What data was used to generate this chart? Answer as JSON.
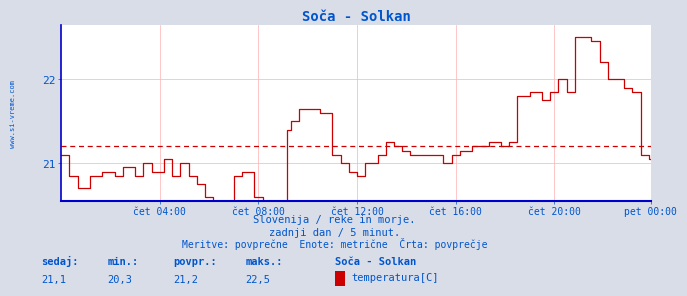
{
  "title": "Soča - Solkan",
  "bg_color": "#d8dde8",
  "plot_bg_color": "#ffffff",
  "line_color": "#cc0000",
  "avg_line_color": "#cc0000",
  "grid_color": "#ffb0b0",
  "grid_vcolor": "#c0c0ff",
  "text_color": "#0055cc",
  "border_left_color": "#0000cc",
  "border_bottom_color": "#0000cc",
  "watermark": "www.si-vreme.com",
  "subtitle1": "Slovenija / reke in morje.",
  "subtitle2": "zadnji dan / 5 minut.",
  "subtitle3": "Meritve: povprečne  Enote: metrične  Črta: povprečje",
  "legend_title": "Soča - Solkan",
  "legend_label": "temperatura[C]",
  "stat_labels": [
    "sedaj:",
    "min.:",
    "povpr.:",
    "maks.:"
  ],
  "stat_values": [
    "21,1",
    "20,3",
    "21,2",
    "22,5"
  ],
  "ylim": [
    20.55,
    22.65
  ],
  "yticks": [
    21,
    22
  ],
  "avg_line": 21.2,
  "xtick_positions": [
    48,
    96,
    144,
    192,
    240,
    287
  ],
  "xtick_labels": [
    "čet 04:00",
    "čet 08:00",
    "čet 12:00",
    "čet 16:00",
    "čet 20:00",
    "pet 00:00"
  ],
  "n_points": 288
}
